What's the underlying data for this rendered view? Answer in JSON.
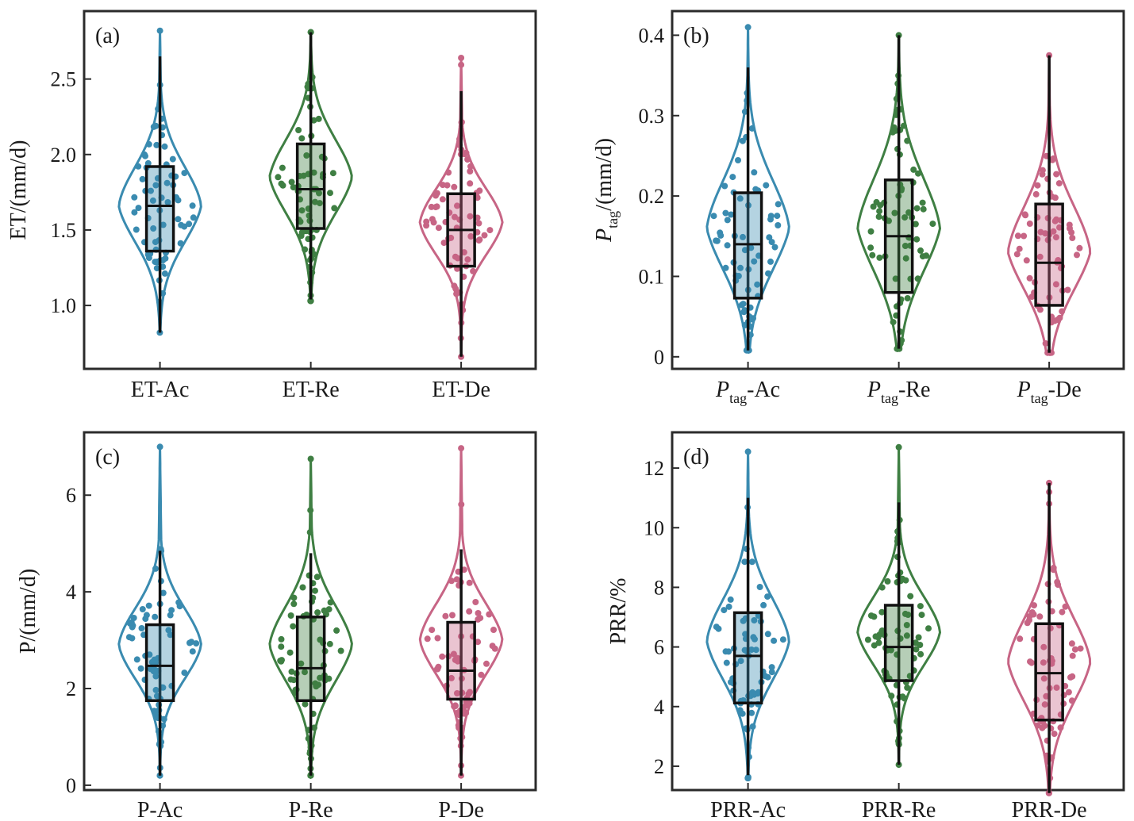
{
  "colors": {
    "Ac": "#3a8bb0",
    "Re": "#3f7f43",
    "De": "#c76585",
    "frame": "#2b2b2b",
    "box_line": "#111111"
  },
  "chart_data": [
    {
      "type": "violin",
      "panel_label": "(a)",
      "ylabel": "ET/(mm/d)",
      "ylabel_sub": "",
      "ylim": [
        0.58,
        2.95
      ],
      "yticks": [
        1.0,
        1.5,
        2.0,
        2.5
      ],
      "ytick_labels": [
        "1.0",
        "1.5",
        "2.0",
        "2.5"
      ],
      "categories": [
        {
          "prefix": "ET",
          "sub": "",
          "suffix": "-Ac"
        },
        {
          "prefix": "ET",
          "sub": "",
          "suffix": "-Re"
        },
        {
          "prefix": "ET",
          "sub": "",
          "suffix": "-De"
        }
      ],
      "series": [
        {
          "group": "Ac",
          "min": 0.82,
          "q1": 1.36,
          "median": 1.66,
          "q3": 1.92,
          "max": 2.65,
          "vmin": 0.82,
          "vmax": 2.82,
          "mode": 1.66,
          "bw": 0.55,
          "n": 70
        },
        {
          "group": "Re",
          "min": 1.04,
          "q1": 1.51,
          "median": 1.77,
          "q3": 2.07,
          "max": 2.81,
          "vmin": 1.03,
          "vmax": 2.81,
          "mode": 1.85,
          "bw": 0.55,
          "n": 70
        },
        {
          "group": "De",
          "min": 0.66,
          "q1": 1.26,
          "median": 1.5,
          "q3": 1.74,
          "max": 2.42,
          "vmin": 0.66,
          "vmax": 2.64,
          "mode": 1.55,
          "bw": 0.55,
          "n": 70
        }
      ]
    },
    {
      "type": "violin",
      "panel_label": "(b)",
      "ylabel": "P",
      "ylabel_sub": "tag",
      "ylabel_rest": "/(mm/d)",
      "ylim": [
        -0.015,
        0.43
      ],
      "yticks": [
        0,
        0.1,
        0.2,
        0.3,
        0.4
      ],
      "ytick_labels": [
        "0",
        "0.1",
        "0.2",
        "0.3",
        "0.4"
      ],
      "categories": [
        {
          "prefix": "P",
          "sub": "tag",
          "suffix": "-Ac"
        },
        {
          "prefix": "P",
          "sub": "tag",
          "suffix": "-Re"
        },
        {
          "prefix": "P",
          "sub": "tag",
          "suffix": "-De"
        }
      ],
      "series": [
        {
          "group": "Ac",
          "min": 0.008,
          "q1": 0.073,
          "median": 0.14,
          "q3": 0.204,
          "max": 0.36,
          "vmin": 0.008,
          "vmax": 0.41,
          "mode": 0.16,
          "bw": 0.55,
          "n": 70
        },
        {
          "group": "Re",
          "min": 0.01,
          "q1": 0.08,
          "median": 0.15,
          "q3": 0.22,
          "max": 0.4,
          "vmin": 0.01,
          "vmax": 0.4,
          "mode": 0.16,
          "bw": 0.55,
          "n": 70
        },
        {
          "group": "De",
          "min": 0.005,
          "q1": 0.064,
          "median": 0.117,
          "q3": 0.19,
          "max": 0.375,
          "vmin": 0.005,
          "vmax": 0.375,
          "mode": 0.13,
          "bw": 0.55,
          "n": 70
        }
      ]
    },
    {
      "type": "violin",
      "panel_label": "(c)",
      "ylabel": "P/(mm/d)",
      "ylabel_sub": "",
      "ylim": [
        -0.1,
        7.3
      ],
      "yticks": [
        0,
        2,
        4,
        6
      ],
      "ytick_labels": [
        "0",
        "2",
        "4",
        "6"
      ],
      "categories": [
        {
          "prefix": "P",
          "sub": "",
          "suffix": "-Ac"
        },
        {
          "prefix": "P",
          "sub": "",
          "suffix": "-Re"
        },
        {
          "prefix": "P",
          "sub": "",
          "suffix": "-De"
        }
      ],
      "series": [
        {
          "group": "Ac",
          "min": 0.2,
          "q1": 1.75,
          "median": 2.47,
          "q3": 3.32,
          "max": 4.85,
          "vmin": 0.2,
          "vmax": 7.0,
          "mode": 2.9,
          "bw": 0.55,
          "n": 70
        },
        {
          "group": "Re",
          "min": 0.2,
          "q1": 1.75,
          "median": 2.42,
          "q3": 3.48,
          "max": 4.8,
          "vmin": 0.2,
          "vmax": 6.75,
          "mode": 2.9,
          "bw": 0.55,
          "n": 70
        },
        {
          "group": "De",
          "min": 0.2,
          "q1": 1.78,
          "median": 2.37,
          "q3": 3.37,
          "max": 4.88,
          "vmin": 0.2,
          "vmax": 6.97,
          "mode": 3.0,
          "bw": 0.55,
          "n": 70
        }
      ]
    },
    {
      "type": "violin",
      "panel_label": "(d)",
      "ylabel": "PRR/%",
      "ylabel_sub": "",
      "ylim": [
        1.2,
        13.2
      ],
      "yticks": [
        2,
        4,
        6,
        8,
        10,
        12
      ],
      "ytick_labels": [
        "2",
        "4",
        "6",
        "8",
        "10",
        "12"
      ],
      "categories": [
        {
          "prefix": "PRR",
          "sub": "",
          "suffix": "-Ac"
        },
        {
          "prefix": "PRR",
          "sub": "",
          "suffix": "-Re"
        },
        {
          "prefix": "PRR",
          "sub": "",
          "suffix": "-De"
        }
      ],
      "series": [
        {
          "group": "Ac",
          "min": 1.7,
          "q1": 4.12,
          "median": 5.7,
          "q3": 7.15,
          "max": 11.0,
          "vmin": 1.6,
          "vmax": 12.55,
          "mode": 6.2,
          "bw": 0.55,
          "n": 70
        },
        {
          "group": "Re",
          "min": 2.05,
          "q1": 4.87,
          "median": 6.0,
          "q3": 7.4,
          "max": 10.85,
          "vmin": 2.05,
          "vmax": 12.7,
          "mode": 6.5,
          "bw": 0.55,
          "n": 70
        },
        {
          "group": "De",
          "min": 1.1,
          "q1": 3.55,
          "median": 5.12,
          "q3": 6.78,
          "max": 11.5,
          "vmin": 1.1,
          "vmax": 11.5,
          "mode": 5.5,
          "bw": 0.55,
          "n": 70
        }
      ]
    }
  ]
}
